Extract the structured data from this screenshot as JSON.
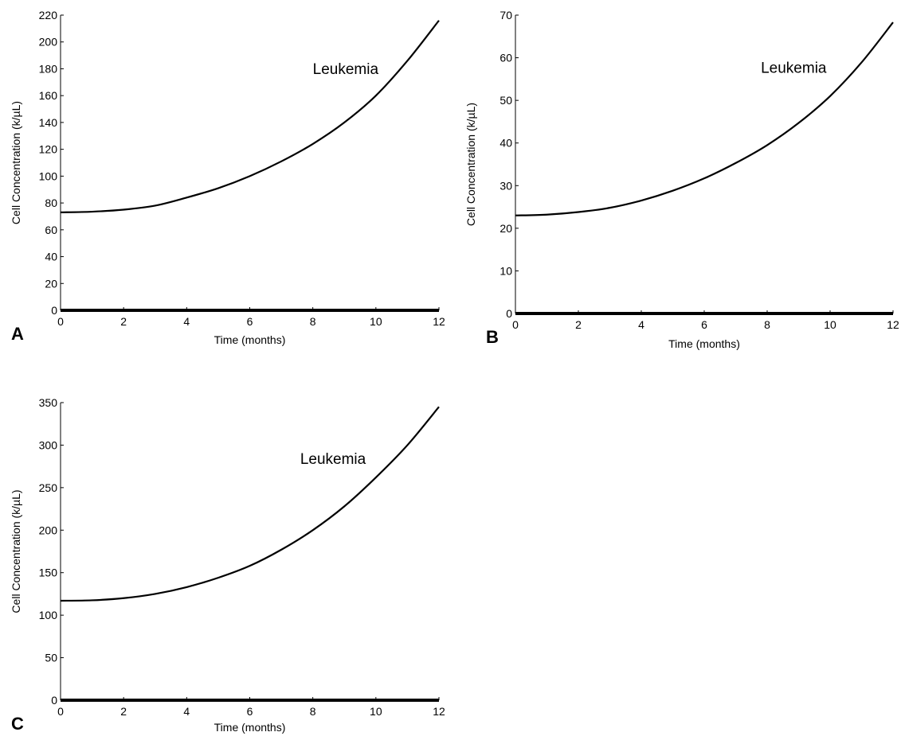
{
  "chart_data": [
    {
      "panel": "A",
      "type": "line",
      "xlabel": "Time (months)",
      "ylabel": "Cell Concentration (k/µL)",
      "xlim": [
        0,
        12
      ],
      "ylim": [
        0,
        220
      ],
      "xticks": [
        0,
        2,
        4,
        6,
        8,
        10,
        12
      ],
      "yticks": [
        0,
        20,
        40,
        60,
        80,
        100,
        120,
        140,
        160,
        180,
        200,
        220
      ],
      "annotation": {
        "text": "Leukemia",
        "x": 8.0,
        "y": 176
      },
      "series": [
        {
          "name": "Leukemia",
          "x": [
            0,
            1,
            2,
            3,
            4,
            5,
            6,
            7,
            8,
            9,
            10,
            11,
            12
          ],
          "y": [
            73,
            73.5,
            75,
            78,
            84,
            91,
            100,
            111,
            124,
            140,
            160,
            186,
            216
          ]
        },
        {
          "x": [
            0,
            12
          ],
          "y": [
            0,
            0
          ],
          "style": "thick"
        }
      ]
    },
    {
      "panel": "B",
      "type": "line",
      "xlabel": "Time (months)",
      "ylabel": "Cell Concentration (k/µL)",
      "xlim": [
        0,
        12
      ],
      "ylim": [
        0,
        70
      ],
      "xticks": [
        0,
        2,
        4,
        6,
        8,
        10,
        12
      ],
      "yticks": [
        0,
        10,
        20,
        30,
        40,
        50,
        60,
        70
      ],
      "annotation": {
        "text": "Leukemia",
        "x": 7.8,
        "y": 56.5
      },
      "series": [
        {
          "name": "Leukemia",
          "x": [
            0,
            1,
            2,
            3,
            4,
            5,
            6,
            7,
            8,
            9,
            10,
            11,
            12
          ],
          "y": [
            23,
            23.2,
            23.8,
            24.8,
            26.5,
            28.8,
            31.7,
            35.3,
            39.5,
            44.7,
            51,
            58.9,
            68.3
          ]
        },
        {
          "x": [
            0,
            12
          ],
          "y": [
            0,
            0
          ],
          "style": "thick"
        }
      ]
    },
    {
      "panel": "C",
      "type": "line",
      "xlabel": "Time (months)",
      "ylabel": "Cell Concentration (k/µL)",
      "xlim": [
        0,
        12
      ],
      "ylim": [
        0,
        350
      ],
      "xticks": [
        0,
        2,
        4,
        6,
        8,
        10,
        12
      ],
      "yticks": [
        0,
        50,
        100,
        150,
        200,
        250,
        300,
        350
      ],
      "annotation": {
        "text": "Leukemia",
        "x": 7.6,
        "y": 278
      },
      "series": [
        {
          "name": "Leukemia",
          "x": [
            0,
            1,
            2,
            3,
            4,
            5,
            6,
            7,
            8,
            9,
            10,
            11,
            12
          ],
          "y": [
            117,
            117.5,
            120,
            125,
            133,
            144,
            158,
            177,
            200,
            228,
            262,
            300,
            345
          ]
        },
        {
          "x": [
            0,
            12
          ],
          "y": [
            0,
            0
          ],
          "style": "thick"
        }
      ]
    }
  ]
}
